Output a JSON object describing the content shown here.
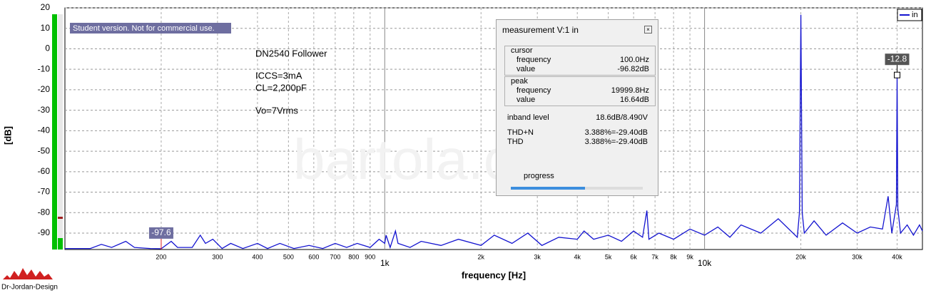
{
  "chart_data": {
    "type": "line",
    "notes": [
      "Student version. Not for commercial use.",
      "DN2540 Follower",
      "ICCS=3mA",
      "CL=2,200pF",
      "Vo=7Vrms"
    ],
    "watermark": "bartola.co.uk",
    "logo": "Dr-Jordan-Design",
    "x_label": "frequency [Hz]",
    "y_label": "[dB]",
    "log_x": true,
    "grid": true,
    "legend": "upper right",
    "xlim": [
      100,
      48000
    ],
    "ylim": [
      -98,
      20
    ],
    "yticks": [
      20,
      10,
      0,
      -10,
      -20,
      -30,
      -40,
      -50,
      -60,
      -70,
      -80,
      -90
    ],
    "xticks": [
      200,
      300,
      400,
      500,
      600,
      700,
      800,
      900,
      {
        "value": 1000,
        "label": "1k"
      },
      {
        "value": 2000,
        "label": "2k"
      },
      {
        "value": 3000,
        "label": "3k"
      },
      {
        "value": 4000,
        "label": "4k"
      },
      {
        "value": 5000,
        "label": "5k"
      },
      {
        "value": 6000,
        "label": "6k"
      },
      {
        "value": 7000,
        "label": "7k"
      },
      {
        "value": 8000,
        "label": "8k"
      },
      {
        "value": 9000,
        "label": "9k"
      },
      {
        "value": 10000,
        "label": "10k"
      },
      {
        "value": 20000,
        "label": "20k"
      },
      {
        "value": 30000,
        "label": "30k"
      },
      {
        "value": 40000,
        "label": "40k"
      }
    ],
    "x": [
      100,
      120,
      130,
      140,
      155,
      165,
      185,
      200,
      215,
      225,
      250,
      265,
      275,
      290,
      310,
      330,
      360,
      400,
      430,
      470,
      520,
      580,
      640,
      700,
      760,
      820,
      900,
      960,
      1000,
      1010,
      1040,
      1080,
      1100,
      1200,
      1300,
      1500,
      1700,
      2000,
      2200,
      2500,
      2800,
      3100,
      3500,
      4000,
      4200,
      4500,
      5000,
      5500,
      6000,
      6400,
      6600,
      6700,
      7200,
      8000,
      9000,
      10000,
      11000,
      12000,
      13000,
      15000,
      17000,
      19500,
      19800,
      20000,
      20200,
      20500,
      22000,
      24000,
      27000,
      30000,
      33000,
      36000,
      37500,
      38500,
      39800,
      40000,
      40200,
      41000,
      43000,
      45000,
      47000,
      48000
    ],
    "series": [
      {
        "name": "in",
        "color": "#1414d0",
        "values": [
          -97.5,
          -97.5,
          -95.5,
          -97,
          -94,
          -97,
          -97.5,
          -97.6,
          -94,
          -97,
          -97,
          -91,
          -95,
          -93,
          -97.5,
          -95,
          -97.5,
          -95,
          -97.5,
          -95,
          -97.5,
          -96,
          -97.5,
          -95,
          -97,
          -95,
          -97,
          -93,
          -95,
          -91,
          -97,
          -89,
          -95,
          -97,
          -94,
          -96,
          -93,
          -96,
          -91,
          -95,
          -90,
          -96,
          -92,
          -93,
          -89,
          -93,
          -91,
          -94,
          -89,
          -92,
          -79,
          -93,
          -90,
          -93,
          -88,
          -91,
          -87,
          -92,
          -86,
          -90,
          -83,
          -92,
          -80,
          16.6,
          -80,
          -90,
          -84,
          -91,
          -85,
          -90,
          -87,
          -88,
          -72,
          -90,
          -76,
          -12.8,
          -78,
          -90,
          -86,
          -91,
          -86,
          -89
        ]
      }
    ],
    "markers": [
      {
        "x": 200,
        "y": -97.6
      },
      {
        "x": 40000,
        "y": -12.8
      }
    ]
  },
  "measurement_panel": {
    "title": "measurement V:1 in",
    "cursor": {
      "heading": "cursor",
      "rows": [
        [
          "frequency",
          "100.0Hz"
        ],
        [
          "value",
          "-96.82dB"
        ]
      ]
    },
    "peak": {
      "heading": "peak",
      "rows": [
        [
          "frequency",
          "19999.8Hz"
        ],
        [
          "value",
          "16.64dB"
        ]
      ]
    },
    "summary": [
      [
        "inband level",
        "18.6dB/8.490V"
      ],
      [
        "THD+N",
        "3.388%=-29.40dB"
      ],
      [
        "THD",
        "3.388%=-29.40dB"
      ]
    ],
    "progress": "progress"
  }
}
